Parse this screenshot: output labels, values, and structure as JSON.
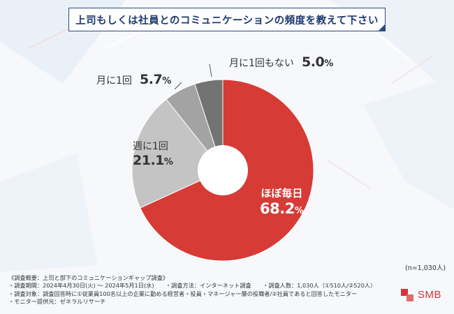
{
  "title": "上司もしくは社員とのコミュニケーションの頻度を教えて下さい",
  "chart_data": {
    "type": "pie",
    "donut": true,
    "slices": [
      {
        "label": "ほぼ毎日",
        "value": 68.2,
        "display": "68.2",
        "color": "#d63b36"
      },
      {
        "label": "週に1回",
        "value": 21.1,
        "display": "21.1",
        "color": "#c4c4c4"
      },
      {
        "label": "月に1回",
        "value": 5.7,
        "display": "5.7",
        "color": "#a3a3a3"
      },
      {
        "label": "月に1回もない",
        "value": 5.0,
        "display": "5.0",
        "color": "#737373"
      }
    ],
    "percent_sign": "%"
  },
  "sample_size": "(n=1,030人)",
  "footnotes": [
    "《調査概要：上司と部下のコミュニケーションギャップ調査》",
    "・調査期間：2024年4月30日(火) ～ 2024年5月1日(水)　　・調査方法：インターネット調査　　・調査人数：1,030人（①510人/②520人）",
    "・調査対象：調査回答時に①従業員100名以上の企業に勤める経営者・役員・マネージャー層の役職者/②社員であると回答したモニター",
    "・モニター提供元：ゼネラルリサーチ"
  ],
  "logo": {
    "text": "SMB",
    "color": "#d2353b"
  }
}
